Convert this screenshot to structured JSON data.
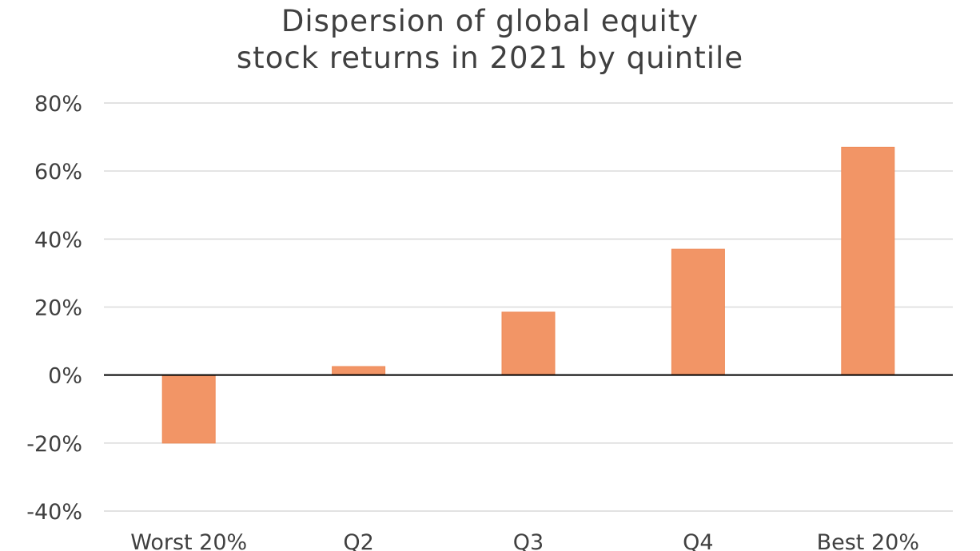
{
  "chart_data": {
    "type": "bar",
    "title_lines": [
      "Dispersion of global equity",
      "stock returns in 2021 by quintile"
    ],
    "categories": [
      "Worst 20%",
      "Q2",
      "Q3",
      "Q4",
      "Best 20%"
    ],
    "values": [
      -20,
      2.5,
      18.5,
      37,
      67
    ],
    "ylim": [
      -40,
      80
    ],
    "yticks": [
      80,
      60,
      40,
      20,
      0,
      -20,
      -40
    ],
    "ytick_labels": [
      "80%",
      "60%",
      "40%",
      "20%",
      "0%",
      "-20%",
      "-40%"
    ],
    "grid": true,
    "legend": "none",
    "colors": {
      "bar": "#F29566",
      "bar_edge": "#EE8A57",
      "grid": "#D9D9D9",
      "zero_line": "#000000",
      "text": "#404040"
    }
  }
}
